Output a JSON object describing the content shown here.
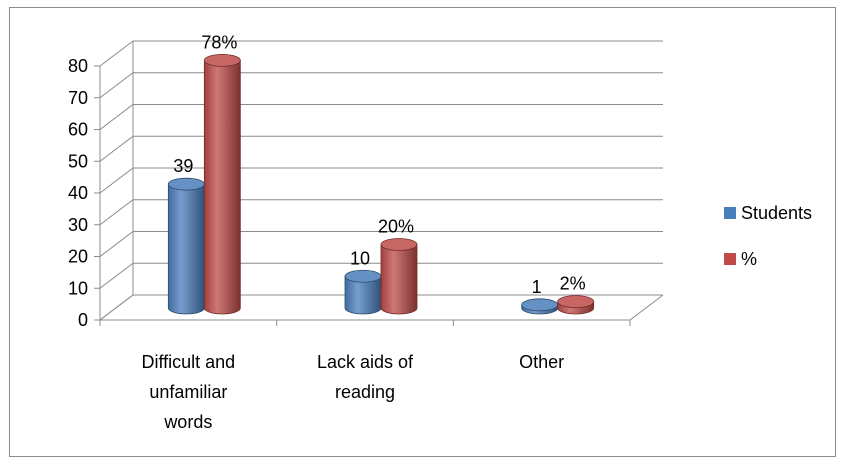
{
  "chart_data": {
    "type": "bar",
    "style": "3d-cylinder",
    "categories": [
      [
        "Difficult and",
        "unfamiliar",
        "words"
      ],
      [
        "Lack aids of",
        "reading"
      ],
      [
        "Other"
      ]
    ],
    "series": [
      {
        "name": "Students",
        "values": [
          39,
          10,
          1
        ],
        "labels": [
          "39",
          "10",
          "1"
        ],
        "color": "#4a7ebb"
      },
      {
        "name": "%",
        "values": [
          78,
          20,
          2
        ],
        "labels": [
          "78%",
          "20%",
          "2%"
        ],
        "color": "#be4b48"
      }
    ],
    "y_ticks": [
      "0",
      "10",
      "20",
      "30",
      "40",
      "50",
      "60",
      "70",
      "80"
    ],
    "ylim": [
      0,
      80
    ],
    "grid": true,
    "legend_position": "right"
  }
}
